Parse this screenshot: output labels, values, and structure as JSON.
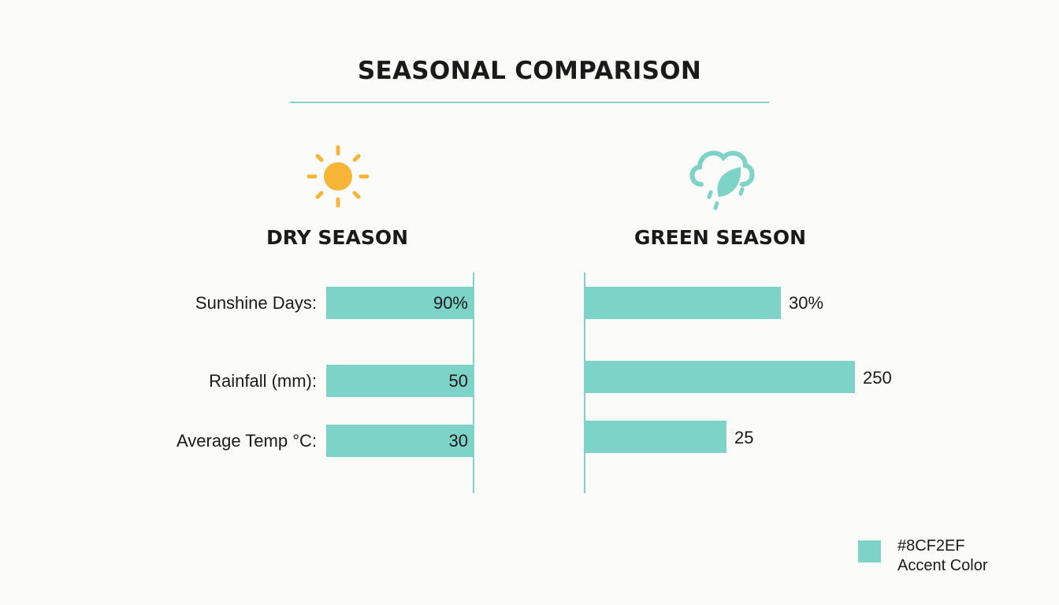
{
  "chart_data": {
    "type": "bar",
    "title": "SEASONAL COMPARISON",
    "categories": [
      "Sunshine Days:",
      "Rainfall (mm):",
      "Average Temp °C:"
    ],
    "series": [
      {
        "name": "DRY SEASON",
        "icon": "sun-icon",
        "values": [
          90,
          50,
          30
        ],
        "labels": [
          "90%",
          "50",
          "30"
        ]
      },
      {
        "name": "GREEN SEASON",
        "icon": "rain-cloud-leaf-icon",
        "values": [
          30,
          250,
          25
        ],
        "labels": [
          "30%",
          "250",
          "25"
        ]
      }
    ],
    "grid": false
  },
  "legend": {
    "color_code": "#8CF2EF",
    "label": "Accent Color"
  },
  "colors": {
    "bar": "#7dd3c8",
    "sun": "#f7b538",
    "accent_line": "#7fd3c8"
  }
}
